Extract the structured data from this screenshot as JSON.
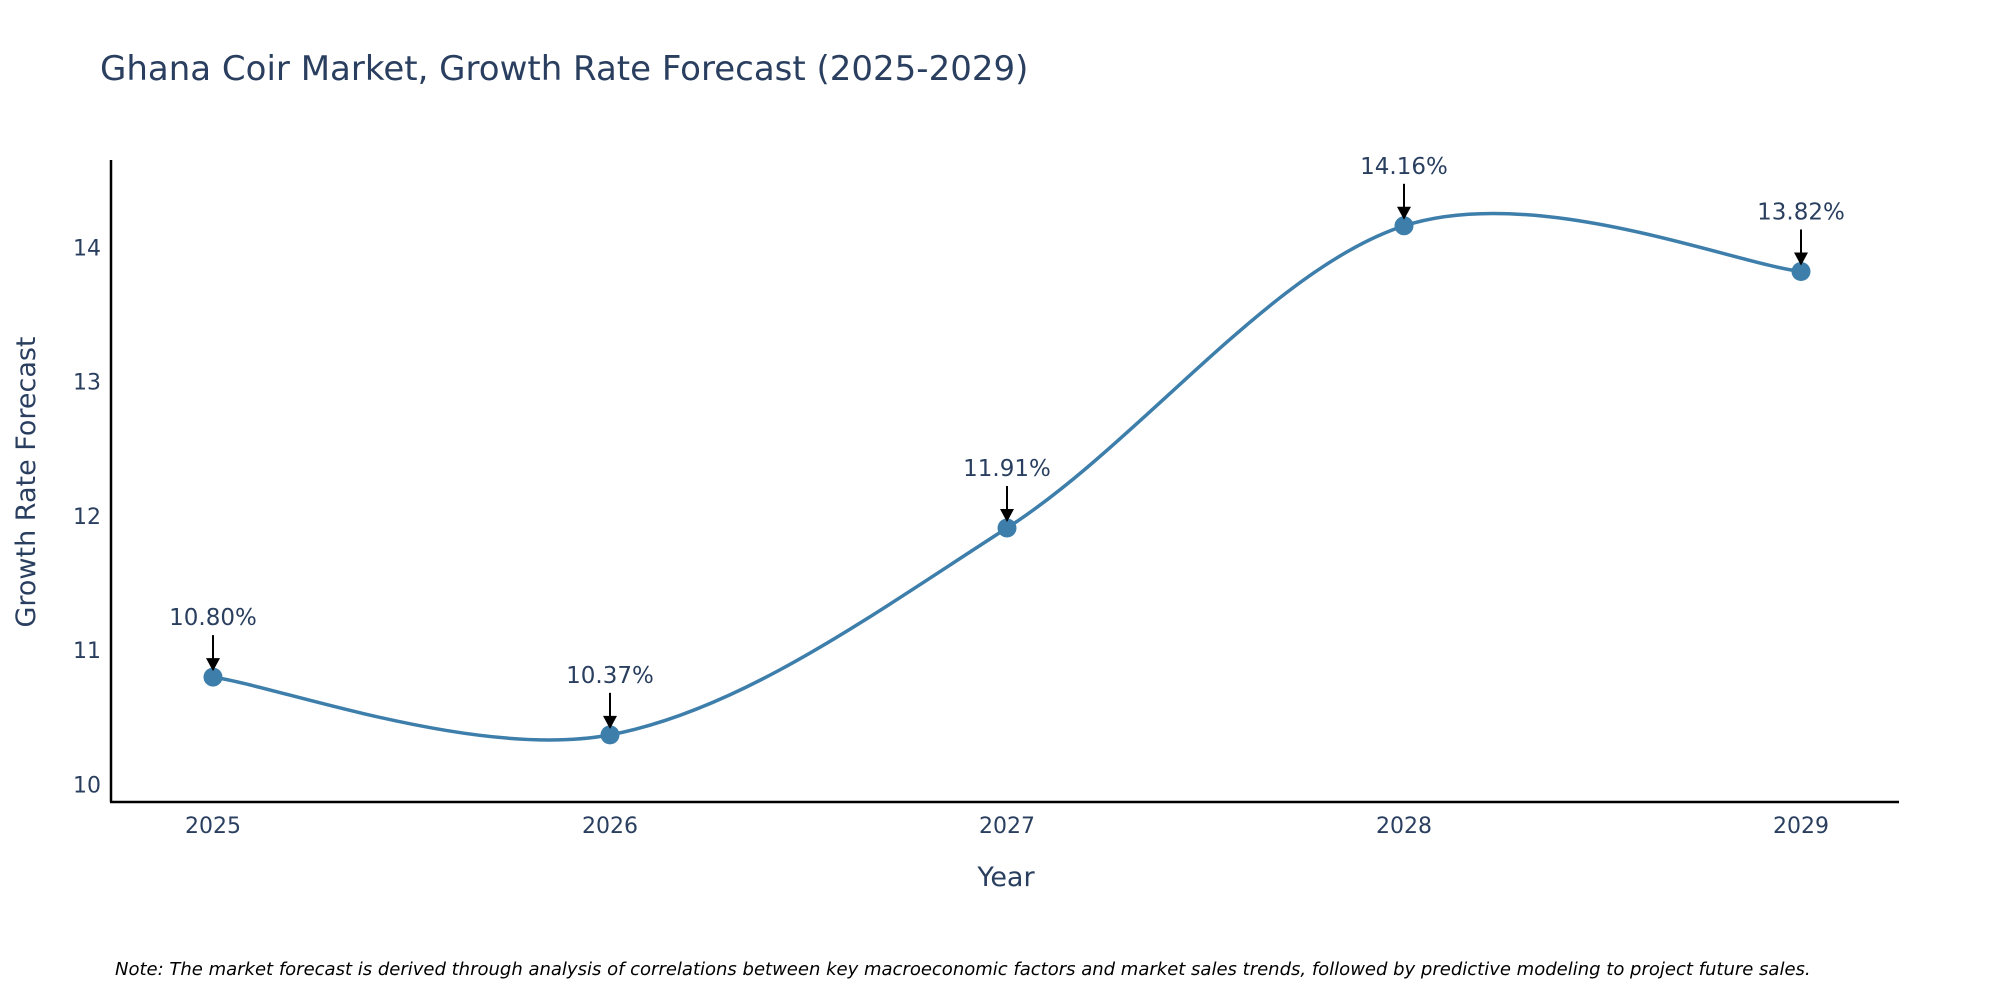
{
  "chart_data": {
    "type": "line",
    "title": "Ghana Coir Market, Growth Rate Forecast (2025-2029)",
    "xlabel": "Year",
    "ylabel": "Growth Rate Forecast",
    "x": [
      "2025",
      "2026",
      "2027",
      "2028",
      "2029"
    ],
    "values": [
      10.8,
      10.37,
      11.91,
      14.16,
      13.82
    ],
    "data_labels": [
      "10.80%",
      "10.37%",
      "11.91%",
      "14.16%",
      "13.82%"
    ],
    "yticks": [
      "10",
      "11",
      "12",
      "13",
      "14"
    ],
    "ylim": [
      9.87,
      14.65
    ],
    "line_shape": "spline",
    "line_color": "#3d7eab",
    "marker_color": "#3d7eab",
    "axis_color": "#000000",
    "grid": false,
    "note": "Note: The market forecast is derived through analysis of correlations between key macroeconomic factors and market sales trends, followed by predictive modeling to project future sales."
  }
}
